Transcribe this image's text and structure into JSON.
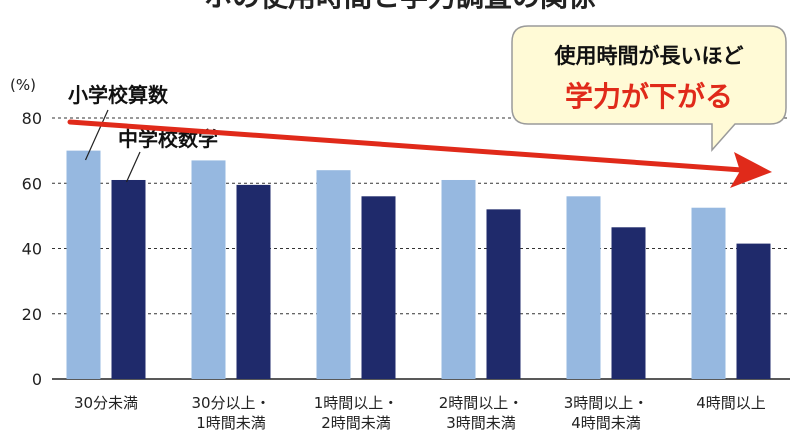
{
  "chart_data": {
    "type": "bar",
    "ylabel": "(%)",
    "ylim": [
      0,
      80
    ],
    "yticks": [
      0,
      20,
      40,
      60,
      80
    ],
    "grid": "dashed horizontal at 20, 40, 60, 80",
    "categories": [
      [
        "30分未満"
      ],
      [
        "30分以上・",
        "1時間未満"
      ],
      [
        "1時間以上・",
        "2時間未満"
      ],
      [
        "2時間以上・",
        "3時間未満"
      ],
      [
        "3時間以上・",
        "4時間未満"
      ],
      [
        "4時間以上"
      ]
    ],
    "series": [
      {
        "name": "小学校算数",
        "color": "#96b8e0",
        "values": [
          70,
          67,
          64,
          61,
          56,
          52.5
        ]
      },
      {
        "name": "中学校数学",
        "color": "#1f2a6b",
        "values": [
          61,
          59.5,
          56,
          52,
          46.5,
          41.5
        ]
      }
    ],
    "callout": {
      "line1": "使用時間が長いほど",
      "line2": "学力が下がる",
      "line1_color": "#111111",
      "line2_color": "#e02a1a",
      "background": "#fffad6",
      "border": "#9a9a9a"
    },
    "trend_arrow_color": "#e02a1a",
    "top_title_fragment": "ホの使用時間と学力調査の関係"
  }
}
